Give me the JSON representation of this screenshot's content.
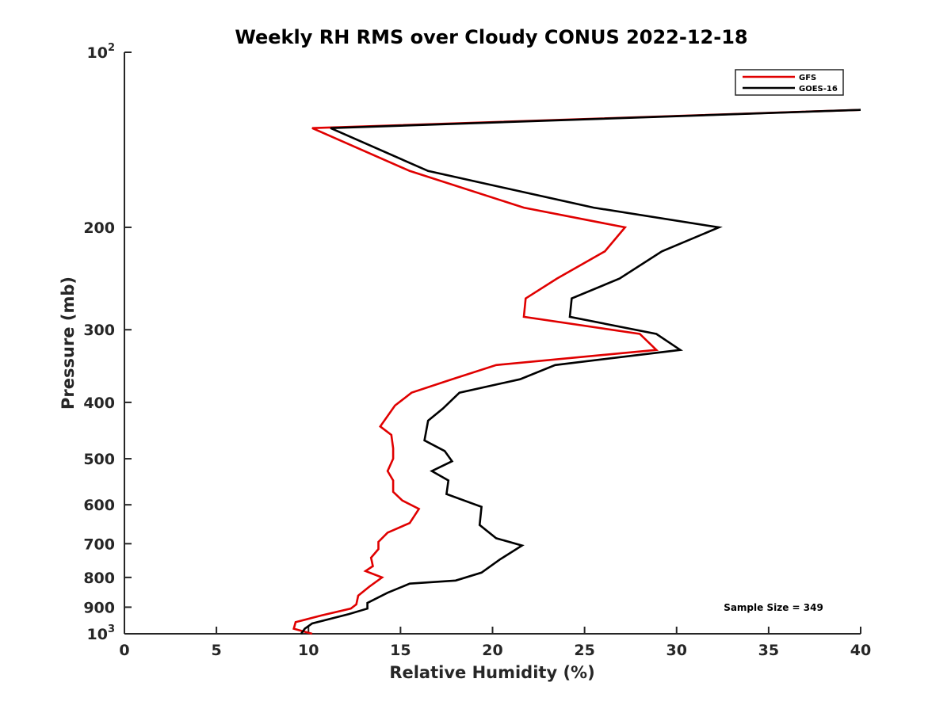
{
  "chart_data": {
    "type": "line",
    "title": "Weekly RH RMS over Cloudy CONUS 2022-12-18",
    "xlabel": "Relative Humidity (%)",
    "ylabel": "Pressure (mb)",
    "xlim": [
      0,
      40
    ],
    "ylim": [
      100,
      1000
    ],
    "yscale": "log",
    "y_reversed": true,
    "grid": false,
    "legend_position": "top-right",
    "x_ticks": [
      {
        "value": 0,
        "label": "0"
      },
      {
        "value": 5,
        "label": "5"
      },
      {
        "value": 10,
        "label": "10"
      },
      {
        "value": 15,
        "label": "15"
      },
      {
        "value": 20,
        "label": "20"
      },
      {
        "value": 25,
        "label": "25"
      },
      {
        "value": 30,
        "label": "30"
      },
      {
        "value": 35,
        "label": "35"
      },
      {
        "value": 40,
        "label": "40"
      }
    ],
    "y_ticks": [
      {
        "value": 100,
        "label": "10",
        "exp": "2"
      },
      {
        "value": 200,
        "label": "200"
      },
      {
        "value": 300,
        "label": "300"
      },
      {
        "value": 400,
        "label": "400"
      },
      {
        "value": 500,
        "label": "500"
      },
      {
        "value": 600,
        "label": "600"
      },
      {
        "value": 700,
        "label": "700"
      },
      {
        "value": 800,
        "label": "800"
      },
      {
        "value": 900,
        "label": "900"
      },
      {
        "value": 1000,
        "label": "10",
        "exp": "3"
      }
    ],
    "series": [
      {
        "name": "GFS",
        "color": "#e00000",
        "points": [
          {
            "x": 42.0,
            "y": 125
          },
          {
            "x": 10.2,
            "y": 135
          },
          {
            "x": 15.5,
            "y": 160
          },
          {
            "x": 21.7,
            "y": 185
          },
          {
            "x": 27.2,
            "y": 200
          },
          {
            "x": 26.1,
            "y": 220
          },
          {
            "x": 23.5,
            "y": 245
          },
          {
            "x": 21.8,
            "y": 265
          },
          {
            "x": 21.7,
            "y": 285
          },
          {
            "x": 28.0,
            "y": 305
          },
          {
            "x": 28.9,
            "y": 325
          },
          {
            "x": 20.2,
            "y": 345
          },
          {
            "x": 17.8,
            "y": 365
          },
          {
            "x": 15.6,
            "y": 385
          },
          {
            "x": 14.7,
            "y": 405
          },
          {
            "x": 13.9,
            "y": 440
          },
          {
            "x": 14.5,
            "y": 455
          },
          {
            "x": 14.6,
            "y": 480
          },
          {
            "x": 14.6,
            "y": 500
          },
          {
            "x": 14.3,
            "y": 525
          },
          {
            "x": 14.6,
            "y": 545
          },
          {
            "x": 14.6,
            "y": 570
          },
          {
            "x": 15.1,
            "y": 590
          },
          {
            "x": 16.0,
            "y": 610
          },
          {
            "x": 15.5,
            "y": 645
          },
          {
            "x": 14.3,
            "y": 670
          },
          {
            "x": 13.8,
            "y": 695
          },
          {
            "x": 13.8,
            "y": 715
          },
          {
            "x": 13.4,
            "y": 740
          },
          {
            "x": 13.5,
            "y": 765
          },
          {
            "x": 13.1,
            "y": 780
          },
          {
            "x": 14.0,
            "y": 800
          },
          {
            "x": 13.3,
            "y": 830
          },
          {
            "x": 12.7,
            "y": 860
          },
          {
            "x": 12.6,
            "y": 890
          },
          {
            "x": 12.3,
            "y": 905
          },
          {
            "x": 10.7,
            "y": 930
          },
          {
            "x": 9.3,
            "y": 955
          },
          {
            "x": 9.2,
            "y": 980
          },
          {
            "x": 10.2,
            "y": 1000
          }
        ]
      },
      {
        "name": "GOES-16",
        "color": "#000000",
        "points": [
          {
            "x": 42.0,
            "y": 125
          },
          {
            "x": 11.2,
            "y": 135
          },
          {
            "x": 16.5,
            "y": 160
          },
          {
            "x": 25.5,
            "y": 185
          },
          {
            "x": 32.3,
            "y": 200
          },
          {
            "x": 29.2,
            "y": 220
          },
          {
            "x": 26.9,
            "y": 245
          },
          {
            "x": 24.3,
            "y": 265
          },
          {
            "x": 24.2,
            "y": 285
          },
          {
            "x": 28.9,
            "y": 305
          },
          {
            "x": 30.2,
            "y": 325
          },
          {
            "x": 23.4,
            "y": 345
          },
          {
            "x": 21.5,
            "y": 365
          },
          {
            "x": 18.2,
            "y": 385
          },
          {
            "x": 17.3,
            "y": 410
          },
          {
            "x": 16.5,
            "y": 430
          },
          {
            "x": 16.3,
            "y": 465
          },
          {
            "x": 17.4,
            "y": 485
          },
          {
            "x": 17.8,
            "y": 505
          },
          {
            "x": 16.7,
            "y": 525
          },
          {
            "x": 17.6,
            "y": 545
          },
          {
            "x": 17.5,
            "y": 575
          },
          {
            "x": 19.4,
            "y": 605
          },
          {
            "x": 19.3,
            "y": 650
          },
          {
            "x": 20.2,
            "y": 685
          },
          {
            "x": 21.6,
            "y": 705
          },
          {
            "x": 20.4,
            "y": 745
          },
          {
            "x": 19.4,
            "y": 785
          },
          {
            "x": 18.0,
            "y": 810
          },
          {
            "x": 15.5,
            "y": 820
          },
          {
            "x": 14.3,
            "y": 850
          },
          {
            "x": 13.2,
            "y": 885
          },
          {
            "x": 13.2,
            "y": 905
          },
          {
            "x": 12.2,
            "y": 925
          },
          {
            "x": 10.2,
            "y": 960
          },
          {
            "x": 9.8,
            "y": 980
          },
          {
            "x": 9.6,
            "y": 1000
          }
        ]
      }
    ],
    "annotations": [
      {
        "text": "Sample Size = 349"
      }
    ]
  }
}
